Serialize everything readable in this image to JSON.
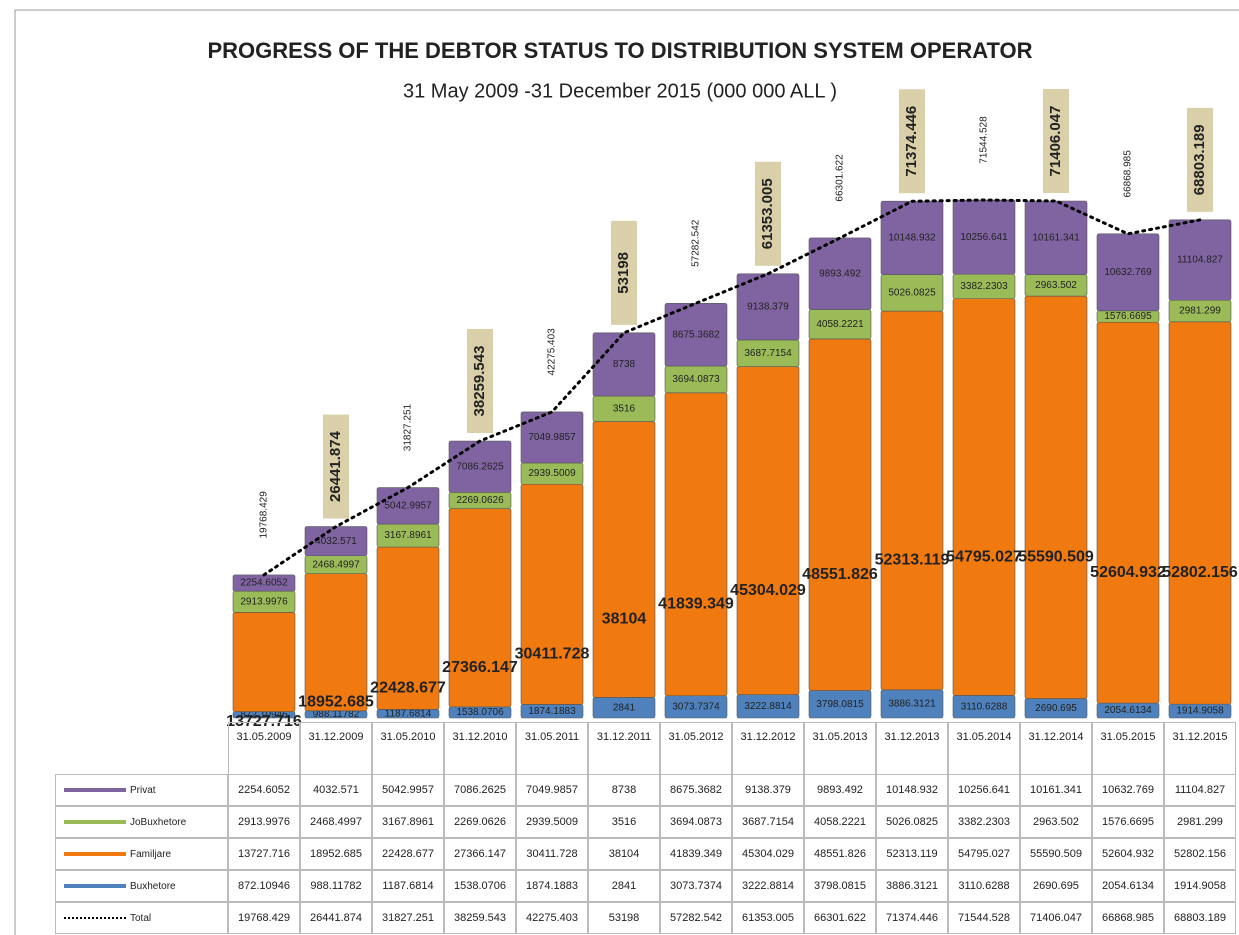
{
  "chart_data": {
    "type": "bar",
    "stacked": true,
    "title": "PROGRESS OF THE DEBTOR STATUS TO DISTRIBUTION SYSTEM OPERATOR",
    "subtitle": "31 May 2009 -31 December  2015   (000 000 ALL )",
    "categories": [
      "31.05.2009",
      "31.12.2009",
      "31.05.2010",
      "31.12.2010",
      "31.05.2011",
      "31.12.2011",
      "31.05.2012",
      "31.12.2012",
      "31.05.2013",
      "31.12.2013",
      "31.05.2014",
      "31.12.2014",
      "31.05.2015",
      "31.12.2015"
    ],
    "series": [
      {
        "name": "Privat",
        "color": "#8064a2",
        "values": [
          2254.6052,
          4032.571,
          5042.9957,
          7086.2625,
          7049.9857,
          8738,
          8675.3682,
          9138.379,
          9893.492,
          10148.932,
          10256.641,
          10161.341,
          10632.769,
          11104.827
        ]
      },
      {
        "name": "JoBuxhetore",
        "color": "#9bbb59",
        "values": [
          2913.9976,
          2468.4997,
          3167.8961,
          2269.0626,
          2939.5009,
          3516,
          3694.0873,
          3687.7154,
          4058.2221,
          5026.0825,
          3382.2303,
          2963.502,
          1576.6695,
          2981.299
        ]
      },
      {
        "name": "Familjare",
        "color": "#f07a10",
        "values": [
          13727.716,
          18952.685,
          22428.677,
          27366.147,
          30411.728,
          38104,
          41839.349,
          45304.029,
          48551.826,
          52313.119,
          54795.027,
          55590.509,
          52604.932,
          52802.156
        ]
      },
      {
        "name": "Buxhetore",
        "color": "#4f81bd",
        "values": [
          872.10946,
          988.11782,
          1187.6814,
          1538.0706,
          1874.1883,
          2841,
          3073.7374,
          3222.8814,
          3798.0815,
          3886.3121,
          3110.6288,
          2690.695,
          2054.6134,
          1914.9058
        ]
      },
      {
        "name": "Total",
        "type": "line",
        "color": "#000000",
        "values": [
          19768.429,
          26441.874,
          31827.251,
          38259.543,
          42275.403,
          53198,
          57282.542,
          61353.005,
          66301.622,
          71374.446,
          71544.528,
          71406.047,
          66868.985,
          68803.189
        ]
      }
    ]
  }
}
